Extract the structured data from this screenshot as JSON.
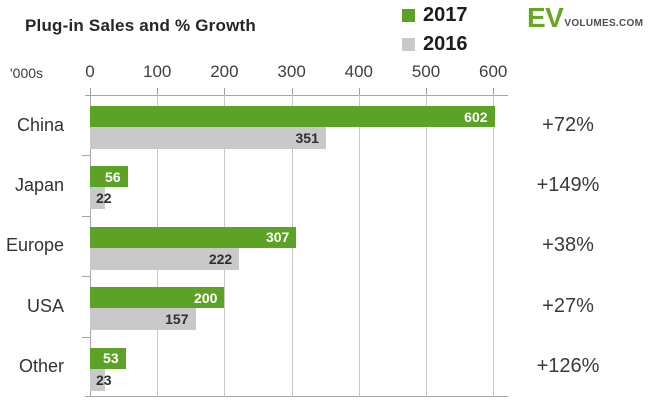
{
  "title": "Plug-in Sales and % Growth",
  "units_label": "'000s",
  "legend": {
    "items": [
      {
        "label": "2017",
        "color": "#5ba226"
      },
      {
        "label": "2016",
        "color": "#c9c9c9"
      }
    ]
  },
  "logo": {
    "ev": "EV",
    "suffix": "VOLUMES.COM"
  },
  "colors": {
    "green_2017": "#5ba226",
    "gray_2016": "#c9c9c9",
    "green_label_text": "#ffffff",
    "gray_label_text": "#2e2e2e",
    "grid": "#c6c6c6",
    "axis": "#a5a5a5",
    "text_dark": "#262626"
  },
  "chart_data": {
    "type": "bar",
    "orientation": "horizontal",
    "title": "Plug-in Sales and % Growth",
    "units": "'000s",
    "categories": [
      "China",
      "Japan",
      "Europe",
      "USA",
      "Other"
    ],
    "series": [
      {
        "name": "2017",
        "color": "#5ba226",
        "values": [
          602,
          56,
          307,
          200,
          53
        ]
      },
      {
        "name": "2016",
        "color": "#c9c9c9",
        "values": [
          351,
          22,
          222,
          157,
          23
        ]
      }
    ],
    "growth_labels": [
      "+72%",
      "+149%",
      "+38%",
      "+27%",
      "+126%"
    ],
    "xlim": [
      0,
      600
    ],
    "xticks": [
      0,
      100,
      200,
      300,
      400,
      500,
      600
    ],
    "grid": true,
    "legend_position": "top-right"
  }
}
